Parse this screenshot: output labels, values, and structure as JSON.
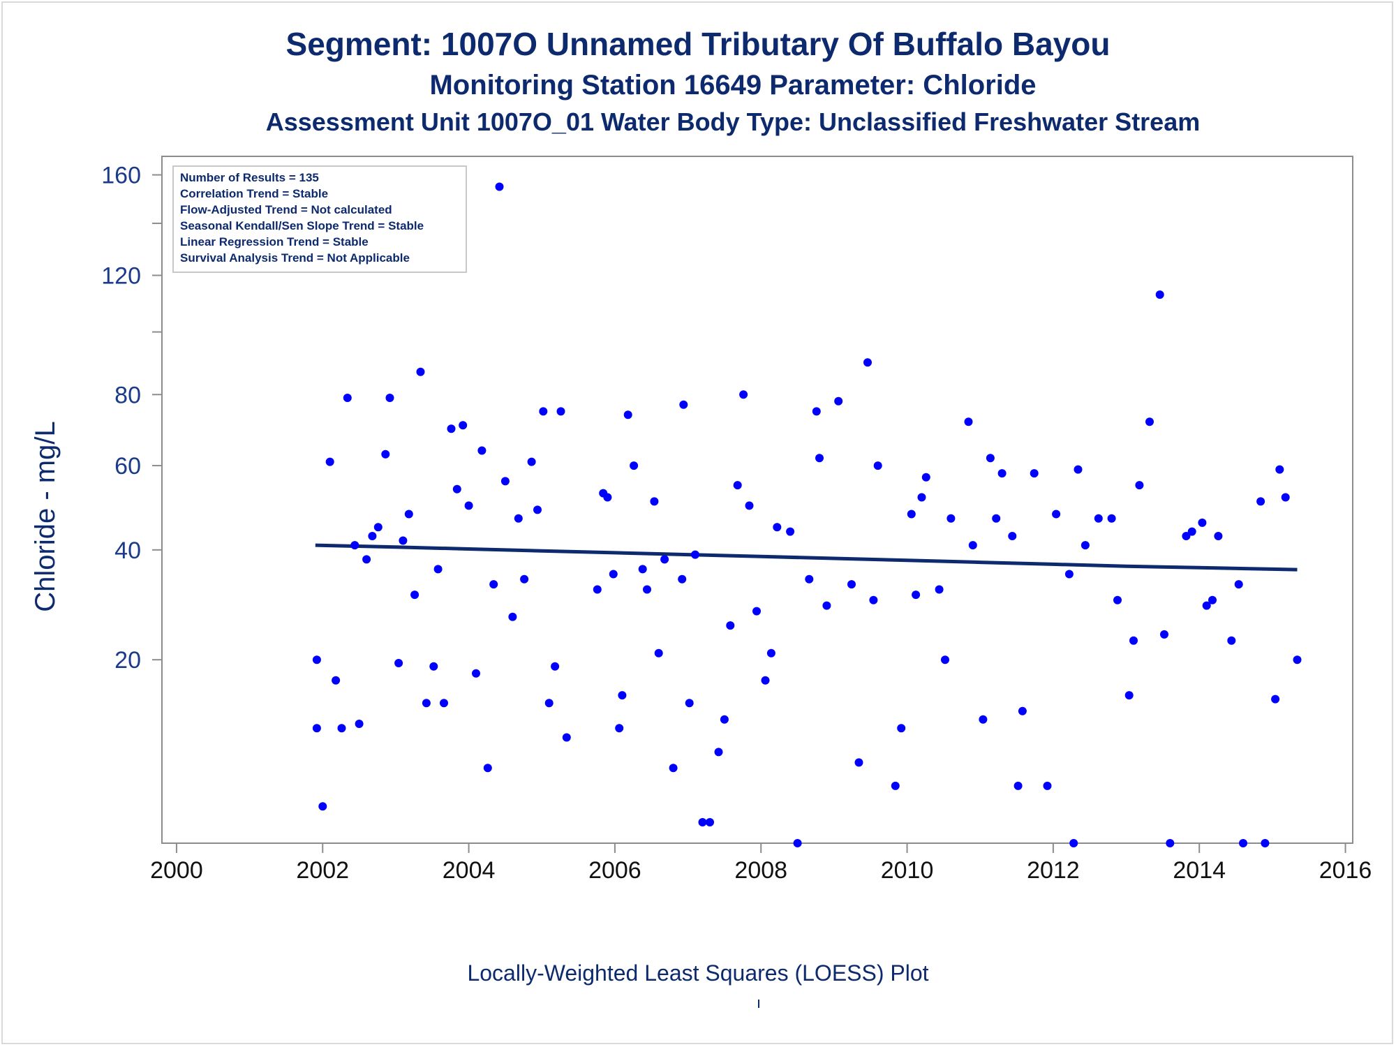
{
  "colors": {
    "title": "#0d2a6e",
    "axis": "#8c8c8c",
    "axis_text": "#1a3a8a",
    "points": "#0000ff",
    "trend": "#0d2a6e"
  },
  "footnote": "Locally-Weighted Least Squares (LOESS) Plot",
  "stats_box": [
    "Number of Results = 135",
    "Correlation Trend = Stable",
    "Flow-Adjusted Trend = Not calculated",
    "Seasonal Kendall/Sen Slope Trend = Stable",
    "Linear Regression Trend = Stable",
    "Survival Analysis Trend = Not Applicable"
  ],
  "chart_data": {
    "type": "scatter",
    "title": "Segment: 1007O  Unnamed Tributary Of Buffalo Bayou",
    "subtitle": "Monitoring Station 16649 Parameter: Chloride",
    "subtitle2": "Assessment Unit 1007O_01   Water Body Type: Unclassified Freshwater Stream",
    "xlabel": "",
    "ylabel": "Chloride - mg/L",
    "x_ticks": [
      2000,
      2002,
      2004,
      2006,
      2008,
      2010,
      2012,
      2014,
      2016
    ],
    "y_ticks": [
      20,
      40,
      60,
      80,
      120,
      160
    ],
    "y_minor_ticks": [
      100,
      140
    ],
    "xlim": [
      1999.8,
      2016.1
    ],
    "ylim": [
      1.9,
      168
    ],
    "y_scale": "sqrt",
    "grid": false,
    "series": [
      {
        "type": "scatter",
        "points": [
          [
            2001.92,
            11
          ],
          [
            2001.92,
            20
          ],
          [
            2002.0,
            4
          ],
          [
            2002.1,
            61
          ],
          [
            2002.18,
            17
          ],
          [
            2002.26,
            11
          ],
          [
            2002.34,
            79
          ],
          [
            2002.44,
            41
          ],
          [
            2002.5,
            11.5
          ],
          [
            2002.6,
            38
          ],
          [
            2002.68,
            43
          ],
          [
            2002.76,
            45
          ],
          [
            2002.86,
            63
          ],
          [
            2002.92,
            79
          ],
          [
            2003.04,
            19.5
          ],
          [
            2003.1,
            42
          ],
          [
            2003.18,
            48
          ],
          [
            2003.26,
            31
          ],
          [
            2003.34,
            87
          ],
          [
            2003.42,
            14
          ],
          [
            2003.52,
            19
          ],
          [
            2003.58,
            36
          ],
          [
            2003.66,
            14
          ],
          [
            2003.76,
            70
          ],
          [
            2003.84,
            54
          ],
          [
            2003.92,
            71
          ],
          [
            2004.0,
            50
          ],
          [
            2004.1,
            18
          ],
          [
            2004.18,
            64
          ],
          [
            2004.26,
            7
          ],
          [
            2004.34,
            33
          ],
          [
            2004.42,
            155
          ],
          [
            2004.5,
            56
          ],
          [
            2004.6,
            27
          ],
          [
            2004.68,
            47
          ],
          [
            2004.76,
            34
          ],
          [
            2004.86,
            61
          ],
          [
            2004.94,
            49
          ],
          [
            2005.02,
            75
          ],
          [
            2005.1,
            14
          ],
          [
            2005.18,
            19
          ],
          [
            2005.26,
            75
          ],
          [
            2005.34,
            10
          ],
          [
            2005.76,
            32
          ],
          [
            2005.84,
            53
          ],
          [
            2005.9,
            52
          ],
          [
            2005.98,
            35
          ],
          [
            2006.06,
            11
          ],
          [
            2006.1,
            15
          ],
          [
            2006.18,
            74
          ],
          [
            2006.26,
            60
          ],
          [
            2006.38,
            36
          ],
          [
            2006.44,
            32
          ],
          [
            2006.54,
            51
          ],
          [
            2006.6,
            21
          ],
          [
            2006.68,
            38
          ],
          [
            2006.8,
            7
          ],
          [
            2006.92,
            34
          ],
          [
            2006.94,
            77
          ],
          [
            2007.02,
            14
          ],
          [
            2007.1,
            39
          ],
          [
            2007.2,
            3
          ],
          [
            2007.3,
            3
          ],
          [
            2007.42,
            8.5
          ],
          [
            2007.5,
            12
          ],
          [
            2007.58,
            25.5
          ],
          [
            2007.68,
            55
          ],
          [
            2007.76,
            80
          ],
          [
            2007.84,
            50
          ],
          [
            2007.94,
            28
          ],
          [
            2008.06,
            17
          ],
          [
            2008.14,
            21
          ],
          [
            2008.22,
            45
          ],
          [
            2008.4,
            44
          ],
          [
            2008.5,
            1.9
          ],
          [
            2008.66,
            34
          ],
          [
            2008.76,
            75
          ],
          [
            2008.8,
            62
          ],
          [
            2008.9,
            29
          ],
          [
            2009.06,
            78
          ],
          [
            2009.24,
            33
          ],
          [
            2009.34,
            7.5
          ],
          [
            2009.46,
            90
          ],
          [
            2009.54,
            30
          ],
          [
            2009.6,
            60
          ],
          [
            2009.84,
            5.5
          ],
          [
            2009.92,
            11
          ],
          [
            2010.06,
            48
          ],
          [
            2010.12,
            31
          ],
          [
            2010.2,
            52
          ],
          [
            2010.26,
            57
          ],
          [
            2010.44,
            32
          ],
          [
            2010.52,
            20
          ],
          [
            2010.6,
            47
          ],
          [
            2010.84,
            72
          ],
          [
            2010.9,
            41
          ],
          [
            2011.04,
            12
          ],
          [
            2011.14,
            62
          ],
          [
            2011.22,
            47
          ],
          [
            2011.3,
            58
          ],
          [
            2011.44,
            43
          ],
          [
            2011.52,
            5.5
          ],
          [
            2011.58,
            13
          ],
          [
            2011.74,
            58
          ],
          [
            2011.92,
            5.5
          ],
          [
            2012.04,
            48
          ],
          [
            2012.22,
            35
          ],
          [
            2012.28,
            1.9
          ],
          [
            2012.34,
            59
          ],
          [
            2012.44,
            41
          ],
          [
            2012.62,
            47
          ],
          [
            2012.8,
            47
          ],
          [
            2012.88,
            30
          ],
          [
            2013.04,
            15
          ],
          [
            2013.1,
            23
          ],
          [
            2013.18,
            55
          ],
          [
            2013.32,
            72
          ],
          [
            2013.46,
            113
          ],
          [
            2013.52,
            24
          ],
          [
            2013.6,
            1.9
          ],
          [
            2013.82,
            43
          ],
          [
            2013.9,
            44
          ],
          [
            2014.04,
            46
          ],
          [
            2014.1,
            29
          ],
          [
            2014.18,
            30
          ],
          [
            2014.26,
            43
          ],
          [
            2014.44,
            23
          ],
          [
            2014.54,
            33
          ],
          [
            2014.6,
            1.9
          ],
          [
            2014.84,
            51
          ],
          [
            2014.9,
            1.9
          ],
          [
            2015.04,
            14.5
          ],
          [
            2015.1,
            59
          ],
          [
            2015.18,
            52
          ],
          [
            2015.34,
            20
          ]
        ]
      },
      {
        "type": "line",
        "points": [
          [
            2001.9,
            41.0
          ],
          [
            2003.0,
            40.6
          ],
          [
            2004.0,
            40.2
          ],
          [
            2005.0,
            39.8
          ],
          [
            2006.0,
            39.4
          ],
          [
            2007.0,
            39.0
          ],
          [
            2008.0,
            38.6
          ],
          [
            2009.0,
            38.2
          ],
          [
            2010.0,
            37.8
          ],
          [
            2011.0,
            37.4
          ],
          [
            2012.0,
            37.0
          ],
          [
            2013.0,
            36.6
          ],
          [
            2014.0,
            36.3
          ],
          [
            2015.0,
            36.0
          ],
          [
            2015.34,
            35.9
          ]
        ]
      }
    ]
  }
}
